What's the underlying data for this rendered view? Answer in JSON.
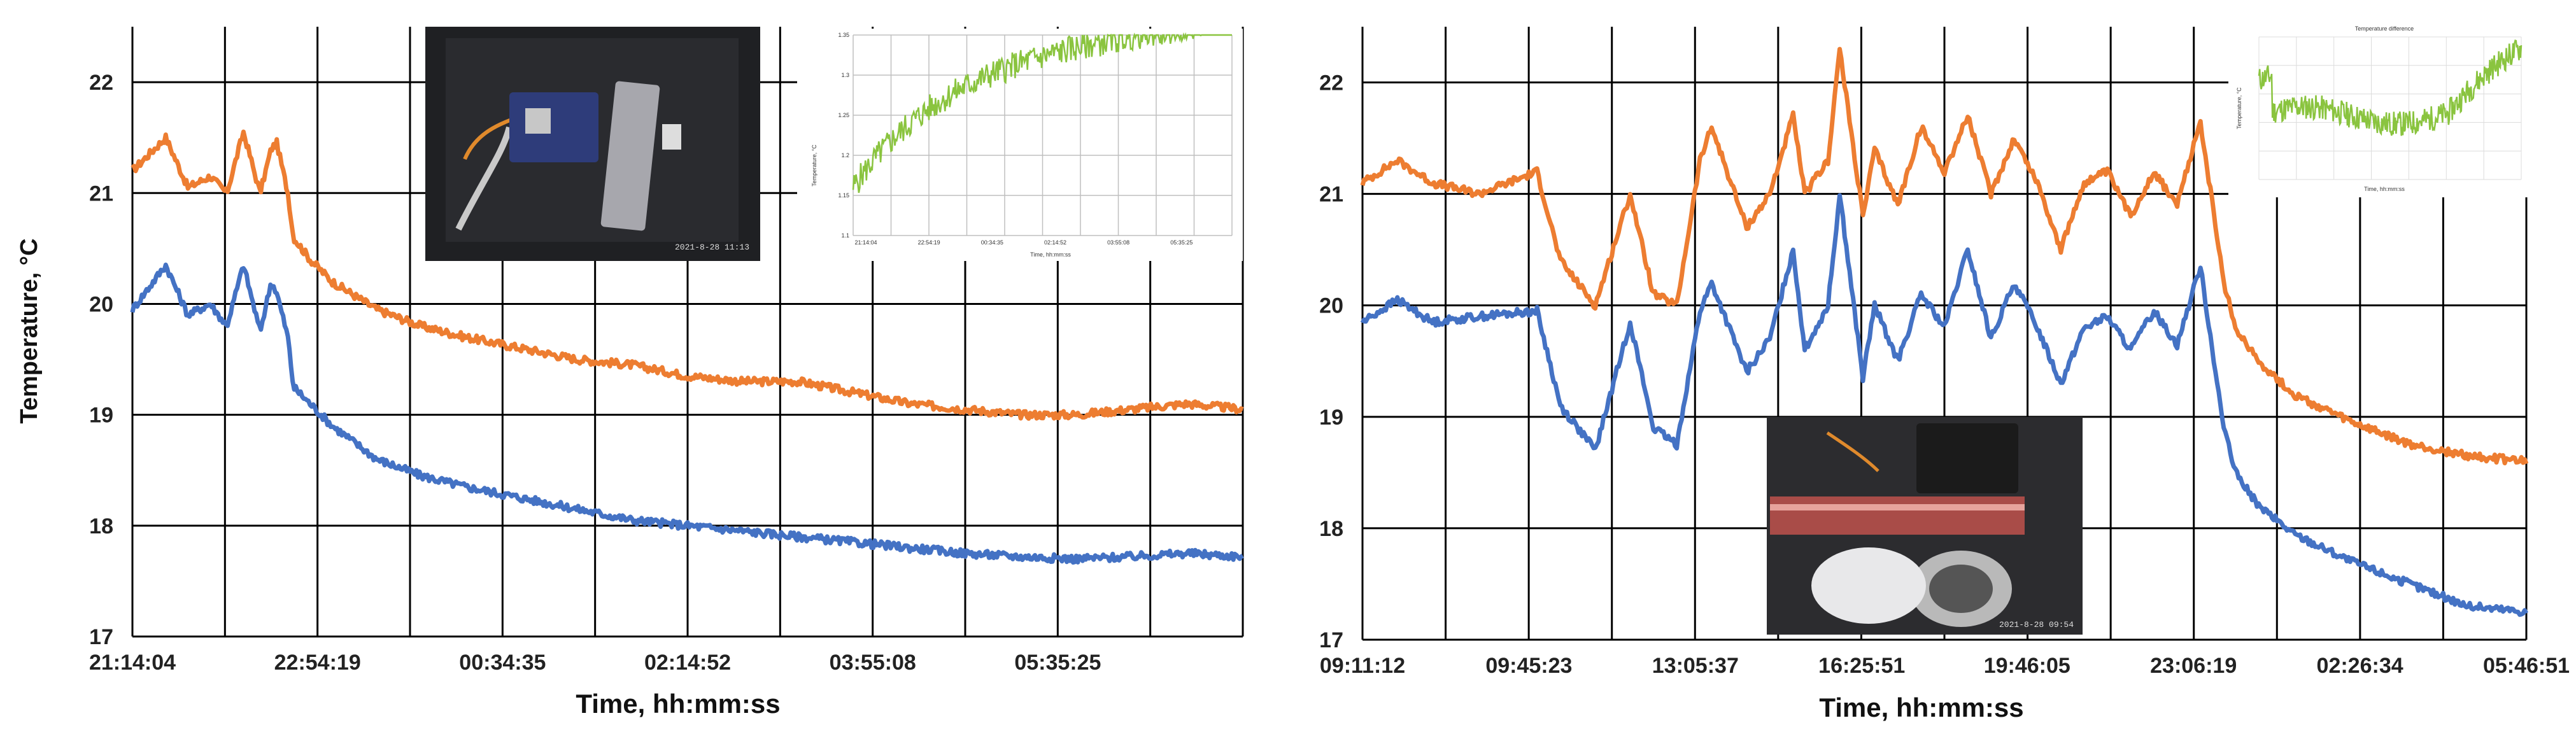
{
  "chart_data": [
    {
      "type": "line",
      "ylabel": "Temperature, °C",
      "xlabel": "Time, hh:mm:ss",
      "ylim": [
        17,
        22.5
      ],
      "y_ticks": [
        "17",
        "18",
        "19",
        "20",
        "21",
        "22"
      ],
      "x_ticks": [
        "21:14:04",
        "22:54:19",
        "00:34:35",
        "02:14:52",
        "03:55:08",
        "05:35:25"
      ],
      "grid": true,
      "series": [
        {
          "color": "#ed7d31",
          "x": [
            0,
            0.03,
            0.05,
            0.07,
            0.085,
            0.1,
            0.115,
            0.125,
            0.13,
            0.14,
            0.145,
            0.16,
            0.18,
            0.22,
            0.26,
            0.3,
            0.35,
            0.4,
            0.45,
            0.5,
            0.55,
            0.6,
            0.65,
            0.7,
            0.75,
            0.8,
            0.85,
            0.9,
            0.95,
            1.0
          ],
          "values": [
            21.2,
            21.5,
            21.05,
            21.15,
            21.0,
            21.55,
            21.0,
            21.4,
            21.45,
            21.0,
            20.6,
            20.4,
            20.2,
            19.95,
            19.8,
            19.7,
            19.6,
            19.5,
            19.45,
            19.35,
            19.3,
            19.3,
            19.2,
            19.1,
            19.05,
            19.0,
            19.0,
            19.05,
            19.1,
            19.05
          ]
        },
        {
          "color": "#4472c4",
          "x": [
            0,
            0.03,
            0.05,
            0.07,
            0.085,
            0.1,
            0.115,
            0.125,
            0.13,
            0.14,
            0.145,
            0.16,
            0.18,
            0.22,
            0.26,
            0.3,
            0.35,
            0.4,
            0.45,
            0.5,
            0.55,
            0.6,
            0.65,
            0.7,
            0.75,
            0.8,
            0.85,
            0.9,
            0.95,
            1.0
          ],
          "values": [
            19.95,
            20.35,
            19.9,
            20.0,
            19.8,
            20.35,
            19.75,
            20.2,
            20.1,
            19.7,
            19.25,
            19.1,
            18.9,
            18.6,
            18.45,
            18.35,
            18.25,
            18.15,
            18.05,
            18.0,
            17.95,
            17.9,
            17.85,
            17.8,
            17.75,
            17.72,
            17.7,
            17.72,
            17.75,
            17.72
          ]
        }
      ],
      "insets": [
        {
          "kind": "photo",
          "stamp": "2021-8-28 11:13"
        },
        {
          "kind": "chart",
          "ylabel": "Temperature, °C",
          "xlabel": "Time, hh:mm:ss",
          "y_ticks": [
            "1.1",
            "1.15",
            "1.2",
            "1.25",
            "1.3",
            "1.35"
          ],
          "x_ticks": [
            "21:14:04",
            "22:54:19",
            "00:34:35",
            "02:14:52",
            "03:55:08",
            "05:35:25"
          ],
          "color": "#8ac43f"
        }
      ]
    },
    {
      "type": "line",
      "xlabel": "Time, hh:mm:ss",
      "ylim": [
        17,
        22.5
      ],
      "y_ticks": [
        "17",
        "18",
        "19",
        "20",
        "21",
        "22"
      ],
      "x_ticks": [
        "09:11:12",
        "09:45:23",
        "13:05:37",
        "16:25:51",
        "19:46:05",
        "23:06:19",
        "02:26:34",
        "05:46:51"
      ],
      "grid": true,
      "series": [
        {
          "color": "#ed7d31",
          "x": [
            0,
            0.03,
            0.06,
            0.1,
            0.15,
            0.17,
            0.2,
            0.23,
            0.25,
            0.27,
            0.29,
            0.3,
            0.33,
            0.35,
            0.37,
            0.38,
            0.4,
            0.41,
            0.43,
            0.44,
            0.46,
            0.48,
            0.5,
            0.52,
            0.54,
            0.56,
            0.58,
            0.6,
            0.62,
            0.64,
            0.66,
            0.68,
            0.7,
            0.72,
            0.74,
            0.75,
            0.77,
            0.8,
            0.85,
            0.9,
            0.95,
            1.0
          ],
          "values": [
            21.1,
            21.3,
            21.1,
            21.0,
            21.2,
            20.4,
            20.0,
            21.0,
            20.1,
            20.0,
            21.3,
            21.6,
            20.7,
            21.0,
            21.7,
            21.0,
            21.3,
            22.3,
            20.8,
            21.4,
            20.9,
            21.6,
            21.2,
            21.7,
            21.0,
            21.5,
            21.1,
            20.5,
            21.1,
            21.2,
            20.8,
            21.2,
            20.9,
            21.65,
            20.2,
            19.8,
            19.5,
            19.2,
            18.95,
            18.75,
            18.65,
            18.6
          ]
        },
        {
          "color": "#4472c4",
          "x": [
            0,
            0.03,
            0.06,
            0.1,
            0.15,
            0.17,
            0.2,
            0.23,
            0.25,
            0.27,
            0.29,
            0.3,
            0.33,
            0.35,
            0.37,
            0.38,
            0.4,
            0.41,
            0.43,
            0.44,
            0.46,
            0.48,
            0.5,
            0.52,
            0.54,
            0.56,
            0.58,
            0.6,
            0.62,
            0.64,
            0.66,
            0.68,
            0.7,
            0.72,
            0.74,
            0.75,
            0.77,
            0.8,
            0.85,
            0.9,
            0.95,
            1.0
          ],
          "values": [
            19.85,
            20.05,
            19.85,
            19.9,
            19.95,
            19.1,
            18.7,
            19.85,
            18.9,
            18.75,
            19.95,
            20.2,
            19.4,
            19.7,
            20.5,
            19.6,
            20.0,
            21.0,
            19.35,
            20.0,
            19.5,
            20.1,
            19.8,
            20.5,
            19.7,
            20.2,
            19.8,
            19.3,
            19.8,
            19.9,
            19.6,
            19.95,
            19.65,
            20.35,
            18.9,
            18.5,
            18.2,
            17.95,
            17.7,
            17.5,
            17.3,
            17.25
          ]
        }
      ],
      "insets": [
        {
          "kind": "chart",
          "title": "Temperature difference",
          "ylabel": "Temperature, °C",
          "xlabel": "Time, hh:mm:ss",
          "color": "#8ac43f"
        },
        {
          "kind": "photo",
          "stamp": "2021-8-28 09:54"
        }
      ]
    }
  ]
}
